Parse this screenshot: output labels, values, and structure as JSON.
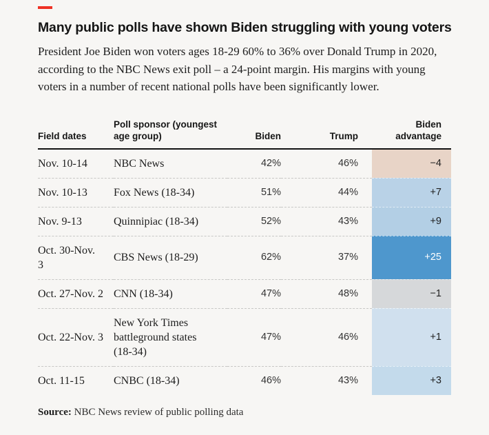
{
  "accent": {
    "dash_color": "#ee3124"
  },
  "header": {
    "title": "Many public polls have shown Biden struggling with young voters",
    "subtitle": "President Joe Biden won voters ages 18-29 60% to 36% over Donald Trump in 2020,\naccording to the NBC News exit poll – a 24-point margin. His margins with young\nvoters in a number of recent national polls have been significantly lower."
  },
  "table": {
    "columns": [
      {
        "label": "Field dates"
      },
      {
        "label": "Poll sponsor (youngest\nage group)"
      },
      {
        "label": "Biden"
      },
      {
        "label": "Trump"
      },
      {
        "label": "Biden\nadvantage"
      }
    ],
    "rows": [
      {
        "dates": "Nov. 10-14",
        "sponsor": "NBC News",
        "biden": "42%",
        "trump": "46%",
        "advantage": "−4",
        "advantage_bg": "#e8d4c7",
        "advantage_text": "#1f1f1f"
      },
      {
        "dates": "Nov. 10-13",
        "sponsor": "Fox News (18-34)",
        "biden": "51%",
        "trump": "44%",
        "advantage": "+7",
        "advantage_bg": "#b9d2e7",
        "advantage_text": "#1f1f1f"
      },
      {
        "dates": "Nov. 9-13",
        "sponsor": "Quinnipiac (18-34)",
        "biden": "52%",
        "trump": "43%",
        "advantage": "+9",
        "advantage_bg": "#b3cfe5",
        "advantage_text": "#1f1f1f"
      },
      {
        "dates": "Oct. 30-Nov.\n3",
        "sponsor": "CBS News (18-29)",
        "biden": "62%",
        "trump": "37%",
        "advantage": "+25",
        "advantage_bg": "#4e97cd",
        "advantage_text": "#ffffff"
      },
      {
        "dates": "Oct. 27-Nov. 2",
        "sponsor": "CNN (18-34)",
        "biden": "47%",
        "trump": "48%",
        "advantage": "−1",
        "advantage_bg": "#d6d8da",
        "advantage_text": "#1f1f1f"
      },
      {
        "dates": "Oct. 22-Nov. 3",
        "sponsor": "New York Times\nbattleground states\n(18-34)",
        "biden": "47%",
        "trump": "46%",
        "advantage": "+1",
        "advantage_bg": "#d0e0ee",
        "advantage_text": "#1f1f1f"
      },
      {
        "dates": "Oct. 11-15",
        "sponsor": "CNBC (18-34)",
        "biden": "46%",
        "trump": "43%",
        "advantage": "+3",
        "advantage_bg": "#c3daeb",
        "advantage_text": "#1f1f1f"
      }
    ]
  },
  "footer": {
    "source_label": "Source:",
    "source_text": " NBC News review of public polling data"
  },
  "chart_data": {
    "type": "table",
    "title": "Many public polls have shown Biden struggling with young voters",
    "columns": [
      "Field dates",
      "Poll sponsor (youngest age group)",
      "Biden",
      "Trump",
      "Biden advantage"
    ],
    "rows": [
      [
        "Nov. 10-14",
        "NBC News",
        42,
        46,
        -4
      ],
      [
        "Nov. 10-13",
        "Fox News (18-34)",
        51,
        44,
        7
      ],
      [
        "Nov. 9-13",
        "Quinnipiac (18-34)",
        52,
        43,
        9
      ],
      [
        "Oct. 30-Nov. 3",
        "CBS News (18-29)",
        62,
        37,
        25
      ],
      [
        "Oct. 27-Nov. 2",
        "CNN (18-34)",
        47,
        48,
        -1
      ],
      [
        "Oct. 22-Nov. 3",
        "New York Times battleground states (18-34)",
        47,
        46,
        1
      ],
      [
        "Oct. 11-15",
        "CNBC (18-34)",
        46,
        43,
        3
      ]
    ],
    "notes": "Biden advantage column shaded: negative = tan/gray, positive = blue scale (darker = larger margin)"
  }
}
